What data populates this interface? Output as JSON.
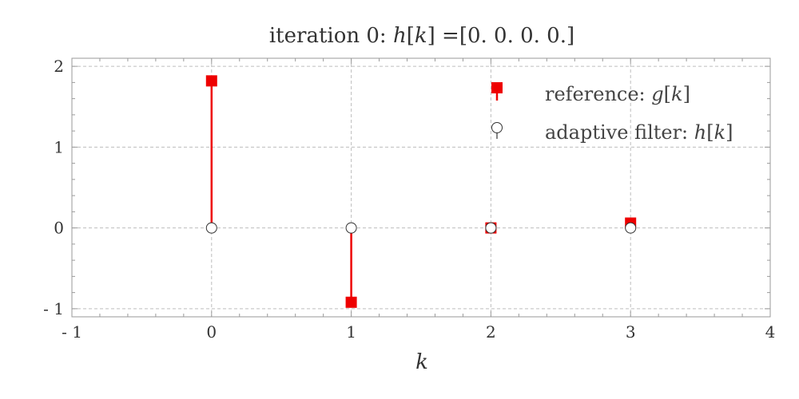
{
  "chart_data": {
    "type": "stem",
    "title": {
      "prefix": "iteration 0: ",
      "var": "h",
      "bracket_open": "[",
      "index": "k",
      "bracket_close": "]",
      "suffix": " =[0. 0. 0. 0.]"
    },
    "xlabel": "k",
    "ylabel": "",
    "xlim": [
      -1,
      4
    ],
    "ylim": [
      -1.1,
      2.1
    ],
    "xticks": [
      -1,
      0,
      1,
      2,
      3,
      4
    ],
    "xtick_labels": [
      "- 1",
      "0",
      "1",
      "2",
      "3",
      "4"
    ],
    "yticks": [
      -1,
      0,
      1,
      2
    ],
    "ytick_labels": [
      "- 1",
      "0",
      "1",
      "2"
    ],
    "grid": true,
    "legend_position": "top-right",
    "series": [
      {
        "name_prefix": "reference: ",
        "name_var": "g",
        "name_index": "k",
        "marker": "square",
        "color": "#ee0000",
        "x": [
          0,
          1,
          2,
          3
        ],
        "y": [
          1.82,
          -0.92,
          0.0,
          0.06
        ]
      },
      {
        "name_prefix": "adaptive filter: ",
        "name_var": "h",
        "name_index": "k",
        "marker": "circle-open",
        "color": "#333333",
        "x": [
          0,
          1,
          2,
          3
        ],
        "y": [
          0,
          0,
          0,
          0
        ]
      }
    ]
  }
}
